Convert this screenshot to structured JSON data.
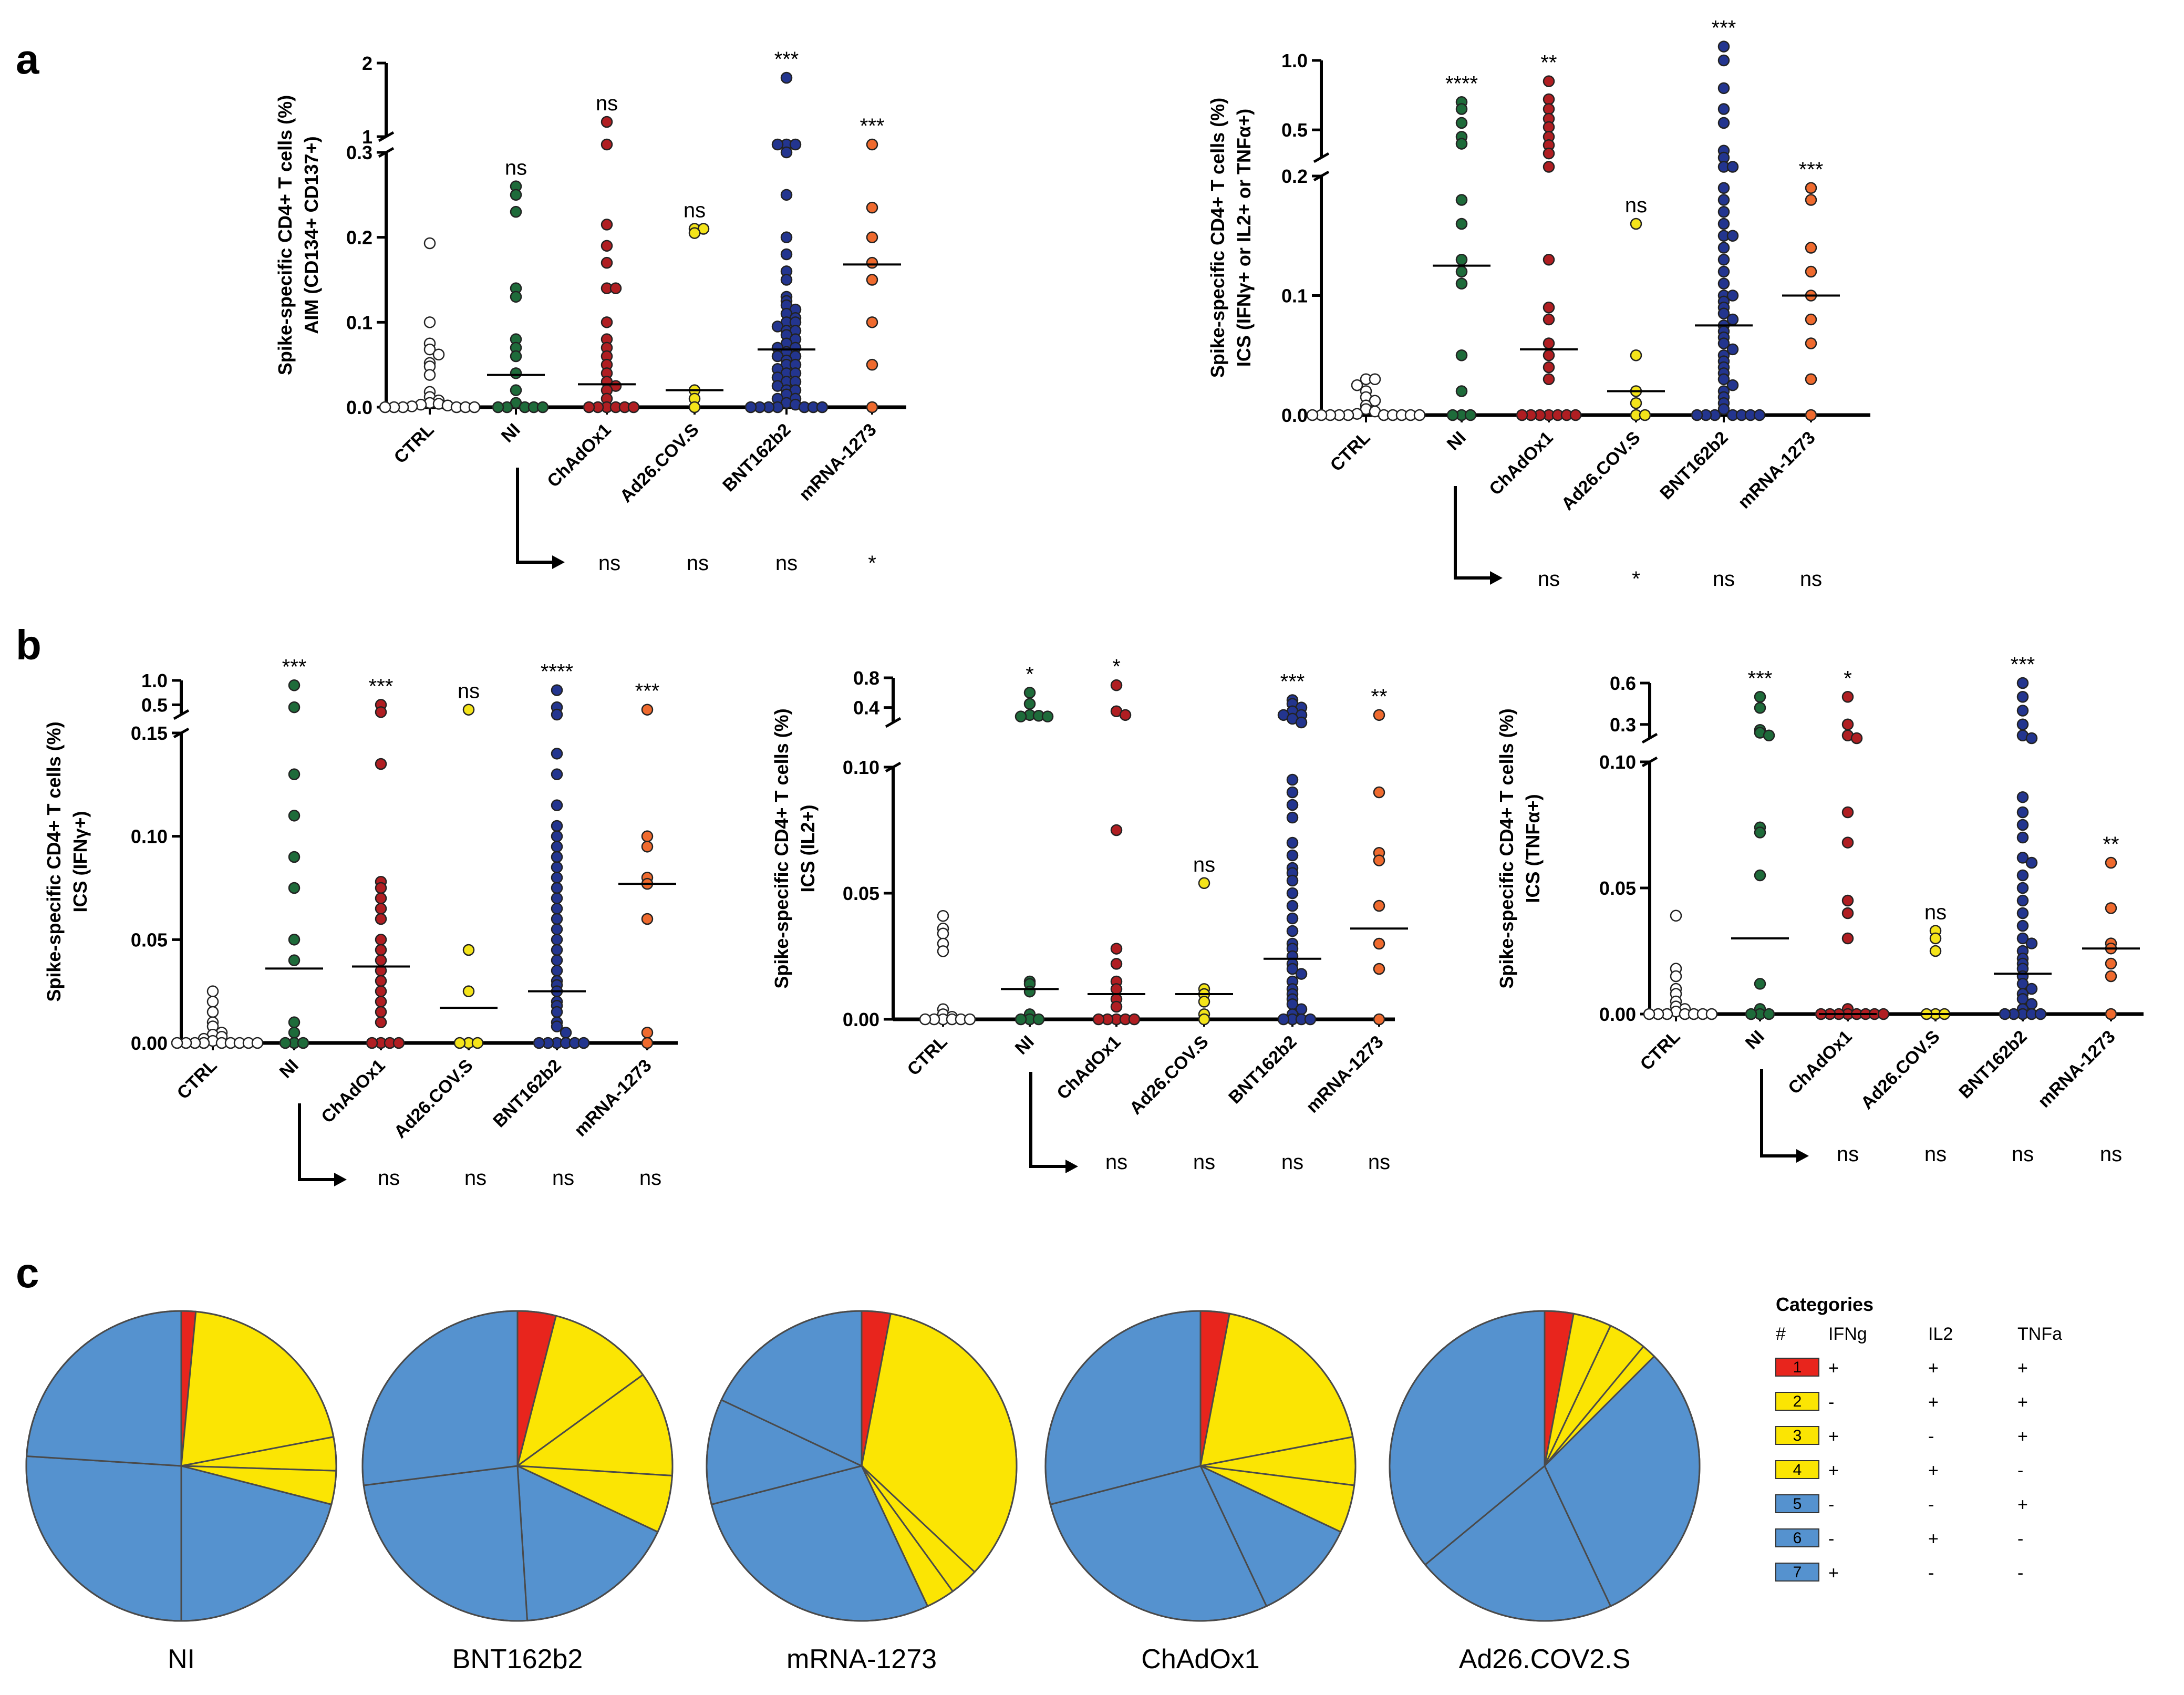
{
  "panel_labels": {
    "a": "a",
    "b": "b",
    "c": "c"
  },
  "colors": {
    "CTRL": "#ffffff",
    "NI": "#1e6b3a",
    "ChAdOx1": "#b01e22",
    "Ad26.COV.S": "#f4e41a",
    "BNT162b2": "#23358f",
    "mRNA-1273": "#ef6a2e",
    "pie_red": "#e8251d",
    "pie_yellow": "#fbe503",
    "pie_blue": "#5592cf"
  },
  "chart_data": [
    {
      "id": "a1",
      "type": "scatter",
      "title": "",
      "ylabel_lines": [
        "Spike-specific CD4+ T cells (%)",
        "AIM (CD134+ CD137+)"
      ],
      "categories": [
        "CTRL",
        "NI",
        "ChAdOx1",
        "Ad26.COV.S",
        "BNT162b2",
        "mRNA-1273"
      ],
      "ylim": [
        0,
        2
      ],
      "y_axis_break": [
        0.3,
        1
      ],
      "yticks": [
        0.0,
        0.1,
        0.2,
        0.3,
        1,
        2
      ],
      "ytick_labels": [
        "0.0",
        "0.1",
        "0.2",
        "0.3",
        "1",
        "2"
      ],
      "medians": [
        null,
        0.038,
        0.027,
        0.02,
        0.068,
        0.168
      ],
      "significance": [
        "",
        "ns",
        "ns",
        "ns",
        "***",
        "***"
      ],
      "comparison_vs_NI": [
        "ns",
        "ns",
        "ns",
        "*"
      ],
      "points": [
        [
          0.193,
          0.1,
          0.075,
          0.068,
          0.062,
          0.052,
          0.048,
          0.038,
          0.018,
          0.012,
          0.008,
          0.005,
          0.004,
          0.003,
          0.002,
          0.001,
          0.0,
          0.0,
          0.0,
          0.0,
          0.0,
          0.0
        ],
        [
          0.26,
          0.25,
          0.23,
          0.14,
          0.13,
          0.08,
          0.07,
          0.06,
          0.04,
          0.02,
          0.005,
          0.0,
          0.0,
          0.0,
          0.0,
          0.0
        ],
        [
          1.2,
          0.6,
          0.215,
          0.19,
          0.17,
          0.14,
          0.14,
          0.1,
          0.08,
          0.07,
          0.06,
          0.05,
          0.04,
          0.03,
          0.025,
          0.02,
          0.01,
          0.0,
          0.0,
          0.0,
          0.0,
          0.0,
          0.0
        ],
        [
          0.21,
          0.21,
          0.205,
          0.02,
          0.01,
          0.0
        ],
        [
          1.8,
          0.7,
          0.7,
          0.65,
          0.3,
          0.25,
          0.2,
          0.18,
          0.16,
          0.15,
          0.13,
          0.125,
          0.12,
          0.115,
          0.11,
          0.105,
          0.1,
          0.1,
          0.095,
          0.09,
          0.09,
          0.085,
          0.08,
          0.075,
          0.07,
          0.07,
          0.065,
          0.06,
          0.06,
          0.055,
          0.05,
          0.05,
          0.045,
          0.04,
          0.04,
          0.035,
          0.03,
          0.03,
          0.025,
          0.02,
          0.02,
          0.015,
          0.01,
          0.01,
          0.005,
          0.003,
          0.0,
          0.0,
          0.0,
          0.0,
          0.0,
          0.0,
          0.0
        ],
        [
          0.7,
          0.235,
          0.2,
          0.17,
          0.15,
          0.1,
          0.05,
          0.0
        ]
      ]
    },
    {
      "id": "a2",
      "type": "scatter",
      "title": "",
      "ylabel_lines": [
        "Spike-specific CD4+ T cells (%)",
        "ICS (IFNγ+ or IL2+ or TNFα+)"
      ],
      "categories": [
        "CTRL",
        "NI",
        "ChAdOx1",
        "Ad26.COV.S",
        "BNT162b2",
        "mRNA-1273"
      ],
      "ylim": [
        0,
        1.0
      ],
      "y_axis_break": [
        0.2,
        0.3
      ],
      "yticks": [
        0.0,
        0.1,
        0.2,
        0.5,
        1.0
      ],
      "ytick_labels": [
        "0.0",
        "0.1",
        "0.2",
        "0.5",
        "1.0"
      ],
      "medians": [
        null,
        0.125,
        0.055,
        0.02,
        0.075,
        0.1
      ],
      "significance": [
        "",
        "****",
        "**",
        "ns",
        "***",
        "***"
      ],
      "comparison_vs_NI": [
        "ns",
        "*",
        "ns",
        "ns"
      ],
      "points": [
        [
          0.03,
          0.03,
          0.025,
          0.02,
          0.015,
          0.012,
          0.008,
          0.005,
          0.003,
          0.001,
          0.0,
          0.0,
          0.0,
          0.0,
          0.0,
          0.0,
          0.0,
          0.0,
          0.0,
          0.0
        ],
        [
          0.7,
          0.65,
          0.55,
          0.45,
          0.4,
          0.18,
          0.16,
          0.13,
          0.12,
          0.11,
          0.05,
          0.02,
          0.0,
          0.0,
          0.0
        ],
        [
          0.85,
          0.72,
          0.65,
          0.58,
          0.52,
          0.45,
          0.39,
          0.33,
          0.27,
          0.13,
          0.09,
          0.08,
          0.06,
          0.05,
          0.04,
          0.03,
          0.0,
          0.0,
          0.0,
          0.0,
          0.0,
          0.0,
          0.0
        ],
        [
          0.16,
          0.05,
          0.02,
          0.01,
          0.0,
          0.0
        ],
        [
          1.1,
          1.0,
          0.8,
          0.65,
          0.55,
          0.35,
          0.3,
          0.23,
          0.21,
          0.19,
          0.18,
          0.17,
          0.16,
          0.15,
          0.15,
          0.14,
          0.13,
          0.12,
          0.11,
          0.1,
          0.1,
          0.095,
          0.09,
          0.085,
          0.08,
          0.075,
          0.07,
          0.065,
          0.06,
          0.055,
          0.05,
          0.045,
          0.04,
          0.035,
          0.03,
          0.025,
          0.02,
          0.015,
          0.01,
          0.005,
          0.0,
          0.0,
          0.0,
          0.0,
          0.0,
          0.0,
          0.0
        ],
        [
          0.19,
          0.18,
          0.14,
          0.12,
          0.1,
          0.08,
          0.06,
          0.03,
          0.0
        ]
      ]
    },
    {
      "id": "b1",
      "type": "scatter",
      "title": "",
      "ylabel_lines": [
        "Spike-specific CD4+ T cells (%)",
        "ICS (IFNγ+)"
      ],
      "categories": [
        "CTRL",
        "NI",
        "ChAdOx1",
        "Ad26.COV.S",
        "BNT162b2",
        "mRNA-1273"
      ],
      "ylim": [
        0,
        1.0
      ],
      "y_axis_break": [
        0.15,
        0.3
      ],
      "yticks": [
        0.0,
        0.05,
        0.1,
        0.15,
        0.5,
        1.0
      ],
      "ytick_labels": [
        "0.00",
        "0.05",
        "0.10",
        "0.15",
        "0.5",
        "1.0"
      ],
      "medians": [
        null,
        0.036,
        0.037,
        0.017,
        0.025,
        0.077
      ],
      "significance": [
        "",
        "***",
        "***",
        "ns",
        "****",
        "***"
      ],
      "comparison_vs_NI": [
        "ns",
        "ns",
        "ns",
        "ns"
      ],
      "points": [
        [
          0.025,
          0.02,
          0.015,
          0.01,
          0.008,
          0.005,
          0.004,
          0.003,
          0.002,
          0.001,
          0.0,
          0.0,
          0.0,
          0.0,
          0.0,
          0.0,
          0.0,
          0.0,
          0.0
        ],
        [
          0.9,
          0.45,
          0.13,
          0.11,
          0.09,
          0.075,
          0.05,
          0.04,
          0.01,
          0.005,
          0.0,
          0.0,
          0.0
        ],
        [
          0.5,
          0.35,
          0.135,
          0.078,
          0.075,
          0.07,
          0.065,
          0.06,
          0.05,
          0.045,
          0.04,
          0.035,
          0.03,
          0.025,
          0.02,
          0.015,
          0.01,
          0.0,
          0.0,
          0.0,
          0.0
        ],
        [
          0.4,
          0.045,
          0.025,
          0.0,
          0.0,
          0.0
        ],
        [
          0.8,
          0.45,
          0.3,
          0.14,
          0.13,
          0.115,
          0.105,
          0.1,
          0.095,
          0.09,
          0.085,
          0.08,
          0.075,
          0.07,
          0.065,
          0.06,
          0.055,
          0.05,
          0.045,
          0.04,
          0.035,
          0.03,
          0.028,
          0.025,
          0.02,
          0.018,
          0.015,
          0.01,
          0.008,
          0.005,
          0.0,
          0.0,
          0.0,
          0.0,
          0.0,
          0.0
        ],
        [
          0.4,
          0.1,
          0.095,
          0.08,
          0.077,
          0.06,
          0.005,
          0.0
        ]
      ]
    },
    {
      "id": "b2",
      "type": "scatter",
      "title": "",
      "ylabel_lines": [
        "Spike-specific CD4+ T cells (%)",
        "ICS (IL2+)"
      ],
      "categories": [
        "CTRL",
        "NI",
        "ChAdOx1",
        "Ad26.COV.S",
        "BNT162b2",
        "mRNA-1273"
      ],
      "ylim": [
        0,
        0.8
      ],
      "y_axis_break": [
        0.1,
        0.2
      ],
      "yticks": [
        0.0,
        0.05,
        0.1,
        0.4,
        0.8
      ],
      "ytick_labels": [
        "0.00",
        "0.05",
        "0.10",
        "0.4",
        "0.8"
      ],
      "medians": [
        null,
        0.012,
        0.01,
        0.01,
        0.024,
        0.036
      ],
      "significance": [
        "",
        "*",
        "*",
        "ns",
        "***",
        "**"
      ],
      "comparison_vs_NI": [
        "ns",
        "ns",
        "ns",
        "ns"
      ],
      "points": [
        [
          0.041,
          0.036,
          0.034,
          0.03,
          0.027,
          0.004,
          0.002,
          0.001,
          0.0,
          0.0,
          0.0,
          0.0,
          0.0,
          0.0
        ],
        [
          0.6,
          0.45,
          0.3,
          0.29,
          0.28,
          0.28,
          0.015,
          0.014,
          0.011,
          0.002,
          0.0,
          0.0,
          0.0
        ],
        [
          0.7,
          0.35,
          0.3,
          0.075,
          0.028,
          0.022,
          0.015,
          0.012,
          0.008,
          0.005,
          0.0,
          0.0,
          0.0,
          0.0,
          0.0
        ],
        [
          0.054,
          0.012,
          0.01,
          0.007,
          0.002,
          0.0
        ],
        [
          0.5,
          0.45,
          0.4,
          0.35,
          0.3,
          0.3,
          0.25,
          0.2,
          0.095,
          0.09,
          0.085,
          0.08,
          0.07,
          0.065,
          0.06,
          0.058,
          0.055,
          0.05,
          0.045,
          0.04,
          0.035,
          0.03,
          0.028,
          0.025,
          0.022,
          0.02,
          0.018,
          0.015,
          0.012,
          0.01,
          0.008,
          0.006,
          0.004,
          0.002,
          0.0,
          0.0,
          0.0,
          0.0
        ],
        [
          0.3,
          0.09,
          0.066,
          0.063,
          0.045,
          0.03,
          0.02,
          0.0
        ]
      ]
    },
    {
      "id": "b3",
      "type": "scatter",
      "title": "",
      "ylabel_lines": [
        "Spike-specific CD4+ T cells (%)",
        "ICS (TNFα+)"
      ],
      "categories": [
        "CTRL",
        "NI",
        "ChAdOx1",
        "Ad26.COV.S",
        "BNT162b2",
        "mRNA-1273"
      ],
      "ylim": [
        0,
        0.6
      ],
      "y_axis_break": [
        0.1,
        0.2
      ],
      "yticks": [
        0.0,
        0.05,
        0.1,
        0.3,
        0.6
      ],
      "ytick_labels": [
        "0.00",
        "0.05",
        "0.10",
        "0.3",
        "0.6"
      ],
      "medians": [
        null,
        0.03,
        0.0,
        0.0,
        0.016,
        0.026
      ],
      "significance": [
        "",
        "***",
        "*",
        "ns",
        "***",
        "**"
      ],
      "comparison_vs_NI": [
        "ns",
        "ns",
        "ns",
        "ns"
      ],
      "points": [
        [
          0.039,
          0.018,
          0.015,
          0.01,
          0.008,
          0.005,
          0.003,
          0.002,
          0.001,
          0.0,
          0.0,
          0.0,
          0.0,
          0.0,
          0.0,
          0.0
        ],
        [
          0.5,
          0.42,
          0.26,
          0.24,
          0.22,
          0.074,
          0.072,
          0.055,
          0.012,
          0.002,
          0.0,
          0.0,
          0.0
        ],
        [
          0.5,
          0.3,
          0.22,
          0.2,
          0.08,
          0.068,
          0.045,
          0.04,
          0.03,
          0.002,
          0.0,
          0.0,
          0.0,
          0.0,
          0.0,
          0.0,
          0.0,
          0.0
        ],
        [
          0.033,
          0.03,
          0.025,
          0.0,
          0.0,
          0.0
        ],
        [
          0.6,
          0.5,
          0.4,
          0.3,
          0.22,
          0.2,
          0.086,
          0.08,
          0.075,
          0.07,
          0.062,
          0.06,
          0.055,
          0.05,
          0.045,
          0.04,
          0.035,
          0.03,
          0.028,
          0.025,
          0.022,
          0.02,
          0.018,
          0.015,
          0.012,
          0.01,
          0.008,
          0.006,
          0.004,
          0.002,
          0.0,
          0.0,
          0.0,
          0.0,
          0.0
        ],
        [
          0.06,
          0.042,
          0.028,
          0.026,
          0.02,
          0.015,
          0.0
        ]
      ]
    },
    {
      "id": "c",
      "type": "pie",
      "legend_title": "Categories",
      "legend_headers": [
        "#",
        "IFNg",
        "IL2",
        "TNFa"
      ],
      "legend_rows": [
        {
          "n": "1",
          "color": "red",
          "ifng": "+",
          "il2": "+",
          "tnfa": "+"
        },
        {
          "n": "2",
          "color": "yellow",
          "ifng": "-",
          "il2": "+",
          "tnfa": "+"
        },
        {
          "n": "3",
          "color": "yellow",
          "ifng": "+",
          "il2": "-",
          "tnfa": "+"
        },
        {
          "n": "4",
          "color": "yellow",
          "ifng": "+",
          "il2": "+",
          "tnfa": "-"
        },
        {
          "n": "5",
          "color": "blue",
          "ifng": "-",
          "il2": "-",
          "tnfa": "+"
        },
        {
          "n": "6",
          "color": "blue",
          "ifng": "-",
          "il2": "+",
          "tnfa": "-"
        },
        {
          "n": "7",
          "color": "blue",
          "ifng": "+",
          "il2": "-",
          "tnfa": "-"
        }
      ],
      "pies": [
        {
          "name": "NI",
          "slices": [
            {
              "cat": 1,
              "value": 1.5
            },
            {
              "cat": 2,
              "value": 20.5
            },
            {
              "cat": 3,
              "value": 3.5
            },
            {
              "cat": 4,
              "value": 3.5
            },
            {
              "cat": 5,
              "value": 21
            },
            {
              "cat": 6,
              "value": 26
            },
            {
              "cat": 7,
              "value": 24
            }
          ]
        },
        {
          "name": "BNT162b2",
          "slices": [
            {
              "cat": 1,
              "value": 4
            },
            {
              "cat": 2,
              "value": 11
            },
            {
              "cat": 3,
              "value": 11
            },
            {
              "cat": 4,
              "value": 6
            },
            {
              "cat": 5,
              "value": 17
            },
            {
              "cat": 6,
              "value": 24
            },
            {
              "cat": 7,
              "value": 27
            }
          ]
        },
        {
          "name": "mRNA-1273",
          "slices": [
            {
              "cat": 1,
              "value": 3
            },
            {
              "cat": 2,
              "value": 34
            },
            {
              "cat": 3,
              "value": 3
            },
            {
              "cat": 4,
              "value": 3
            },
            {
              "cat": 5,
              "value": 28
            },
            {
              "cat": 6,
              "value": 11
            },
            {
              "cat": 7,
              "value": 18
            }
          ]
        },
        {
          "name": "ChAdOx1",
          "slices": [
            {
              "cat": 1,
              "value": 3
            },
            {
              "cat": 2,
              "value": 19
            },
            {
              "cat": 3,
              "value": 5
            },
            {
              "cat": 4,
              "value": 5
            },
            {
              "cat": 5,
              "value": 11
            },
            {
              "cat": 6,
              "value": 28
            },
            {
              "cat": 7,
              "value": 29
            }
          ]
        },
        {
          "name": "Ad26.COV2.S",
          "slices": [
            {
              "cat": 1,
              "value": 3
            },
            {
              "cat": 2,
              "value": 4
            },
            {
              "cat": 3,
              "value": 4
            },
            {
              "cat": 4,
              "value": 1.5
            },
            {
              "cat": 5,
              "value": 30.5
            },
            {
              "cat": 6,
              "value": 21
            },
            {
              "cat": 7,
              "value": 36
            }
          ]
        }
      ]
    }
  ]
}
